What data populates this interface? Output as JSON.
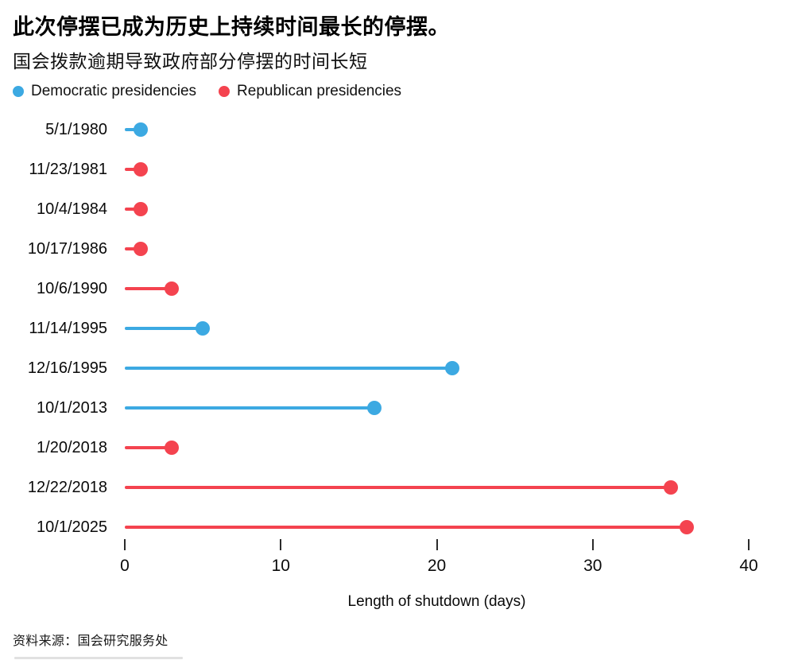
{
  "header": {
    "title": "此次停摆已成为历史上持续时间最长的停摆。",
    "subtitle": "国会拨款逾期导致政府部分停摆的时间长短"
  },
  "legend": {
    "items": [
      {
        "label": "Democratic presidencies",
        "party": "D"
      },
      {
        "label": "Republican presidencies",
        "party": "R"
      }
    ]
  },
  "chart_data": {
    "type": "bar",
    "orientation": "horizontal-lollipop",
    "categories": [
      "5/1/1980",
      "11/23/1981",
      "10/4/1984",
      "10/17/1986",
      "10/6/1990",
      "11/14/1995",
      "12/16/1995",
      "10/1/2013",
      "1/20/2018",
      "12/22/2018",
      "10/1/2025"
    ],
    "values": [
      1,
      1,
      1,
      1,
      3,
      5,
      21,
      16,
      3,
      35,
      36
    ],
    "parties": [
      "D",
      "R",
      "R",
      "R",
      "R",
      "D",
      "D",
      "D",
      "R",
      "R",
      "R"
    ],
    "colors": {
      "D": "#3CA9E2",
      "R": "#F4434F"
    },
    "title": "此次停摆已成为历史上持续时间最长的停摆。",
    "xlabel": "Length of shutdown (days)",
    "ylabel": "",
    "x_ticks": [
      0,
      10,
      20,
      30,
      40
    ],
    "xlim": [
      0,
      40
    ],
    "grid": false,
    "legend_position": "top-left"
  },
  "footer": {
    "source": "资料来源：国会研究服务处"
  }
}
